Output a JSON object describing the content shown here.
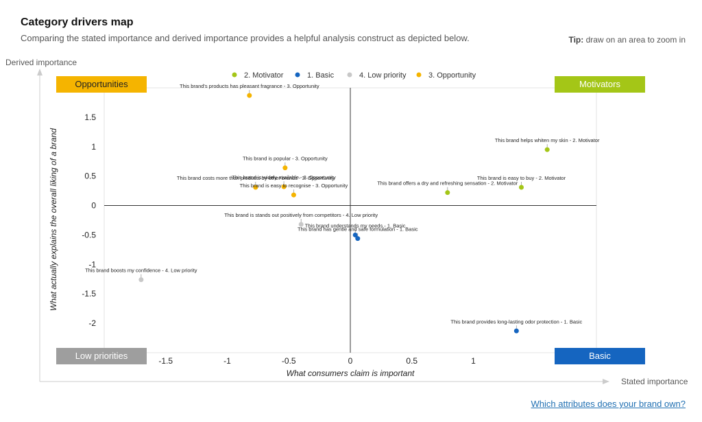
{
  "header": {
    "title": "Category drivers map",
    "subtitle": "Comparing the stated importance and derived importance provides a helpful analysis construct as depicted below.",
    "tip_label": "Tip:",
    "tip_text": " draw on an area to zoom in"
  },
  "outer_axes": {
    "y_label": "Derived importance",
    "x_label": "Stated importance"
  },
  "quadrants": {
    "top_left": {
      "label": "Opportunities",
      "color": "#f5b400",
      "text_color": "#222222"
    },
    "top_right": {
      "label": "Motivators",
      "color": "#a4c617",
      "text_color": "#ffffff"
    },
    "bottom_left": {
      "label": "Low priorities",
      "color": "#9e9e9e",
      "text_color": "#ffffff"
    },
    "bottom_right": {
      "label": "Basic",
      "color": "#1565c0",
      "text_color": "#ffffff"
    }
  },
  "footer": {
    "link_text": "Which attributes does your brand own?"
  },
  "chart_data": {
    "type": "scatter",
    "xlabel": "What consumers claim is important",
    "ylabel": "What actually explains the overall liking of a brand",
    "xlim": [
      -2,
      2
    ],
    "ylim": [
      -2.5,
      2
    ],
    "x_ticks": [
      -1.5,
      -1,
      -0.5,
      0,
      0.5,
      1
    ],
    "x_tick_labels": [
      "-1.5",
      "-1",
      "-0.5",
      "0",
      "0.5",
      "1"
    ],
    "y_ticks": [
      1.5,
      1,
      0.5,
      0,
      -0.5,
      -1,
      -1.5,
      -2
    ],
    "y_tick_labels": [
      "1.5",
      "1",
      "0.5",
      "0",
      "-0.5",
      "-1",
      "-1.5",
      "-2"
    ],
    "legend": [
      {
        "name": "2. Motivator",
        "color": "#a4c617"
      },
      {
        "name": "1. Basic",
        "color": "#1565c0"
      },
      {
        "name": "4. Low priority",
        "color": "#c8c8c8"
      },
      {
        "name": "3. Opportunity",
        "color": "#f5b400"
      }
    ],
    "legend_position": "top-center",
    "grid": false,
    "points": [
      {
        "x": -0.82,
        "y": 1.87,
        "label": "This brand's products has pleasant fragrance - 3. Opportunity",
        "color": "#f5b400"
      },
      {
        "x": 1.6,
        "y": 0.95,
        "label": "This brand helps whiten my skin - 2. Motivator",
        "color": "#a4c617"
      },
      {
        "x": -0.53,
        "y": 0.64,
        "label": "This brand is popular - 3. Opportunity",
        "color": "#f5b400"
      },
      {
        "x": 1.39,
        "y": 0.31,
        "label": "This brand is easy to buy - 2. Motivator",
        "color": "#a4c617"
      },
      {
        "x": 0.79,
        "y": 0.22,
        "label": "This brand offers a dry and refreshing sensation - 2. Motivator",
        "color": "#a4c617"
      },
      {
        "x": -0.77,
        "y": 0.31,
        "label": "This brand costs more than products by other brands - 3. Opportunity",
        "color": "#f5b400"
      },
      {
        "x": -0.54,
        "y": 0.32,
        "label": "This brand is widely available - 3. Opportunity",
        "color": "#f5b400"
      },
      {
        "x": -0.46,
        "y": 0.18,
        "label": "This brand is easy to recognise - 3. Opportunity",
        "color": "#f5b400"
      },
      {
        "x": -0.4,
        "y": -0.32,
        "label": "This brand is stands out positively from competitors - 4. Low priority",
        "color": "#c8c8c8"
      },
      {
        "x": 0.04,
        "y": -0.5,
        "label": "This brand understands my needs - 1. Basic",
        "color": "#1565c0"
      },
      {
        "x": 0.06,
        "y": -0.56,
        "label": "This brand has gentle and safe formulation - 1. Basic",
        "color": "#1565c0"
      },
      {
        "x": -1.7,
        "y": -1.26,
        "label": "This brand boosts my confidence - 4. Low priority",
        "color": "#c8c8c8"
      },
      {
        "x": 1.35,
        "y": -2.13,
        "label": "This brand provides long-lasting odor protection - 1. Basic",
        "color": "#1565c0"
      }
    ]
  }
}
